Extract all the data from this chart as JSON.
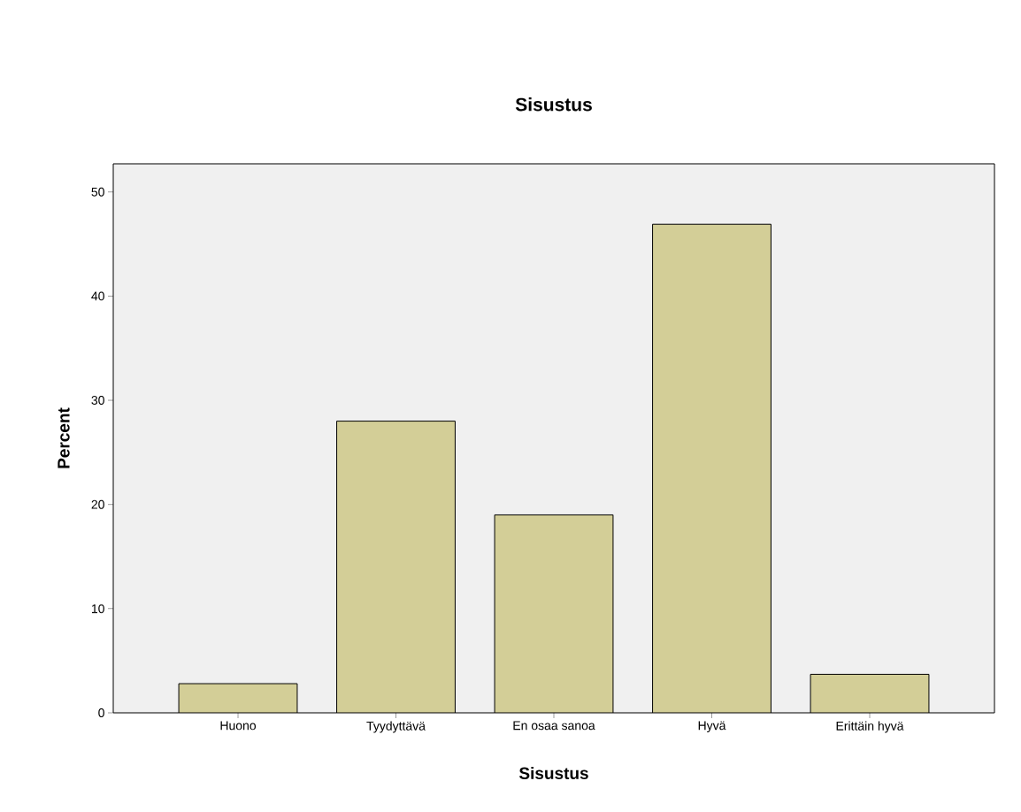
{
  "chart_data": {
    "type": "bar",
    "title": "Sisustus",
    "xlabel": "Sisustus",
    "ylabel": "Percent",
    "categories": [
      "Huono",
      "Tyydyttävä",
      "En osaa sanoa",
      "Hyvä",
      "Erittäin hyvä"
    ],
    "values": [
      2.8,
      28.0,
      19.0,
      46.9,
      3.7
    ],
    "color": "#d3ce97",
    "ylim": [
      0,
      52.7
    ],
    "yticks": [
      0,
      10,
      20,
      30,
      40,
      50
    ]
  }
}
